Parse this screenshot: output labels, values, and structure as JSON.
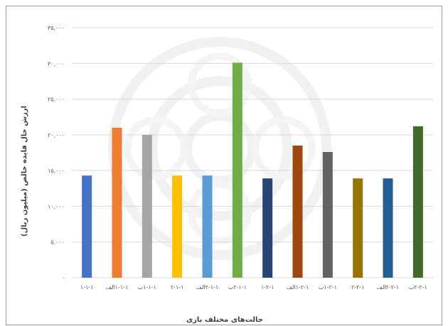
{
  "chart_data": {
    "type": "bar",
    "categories": [
      "۱-۱-۱",
      "۱-۱-۱الف",
      "۱-۱-۱ب",
      "۲-۱-۱",
      "۲-۱-۱الف",
      "۲-۱-۱ب",
      "۱-۲-۱",
      "۱-۲-۱الف",
      "۱-۲-۱ب",
      "۲-۲-۱",
      "۲-۲-۱الف",
      "۲-۲-۱ب"
    ],
    "values": [
      14300,
      21000,
      20000,
      14300,
      14300,
      30100,
      13900,
      18500,
      17600,
      13900,
      13900,
      21200
    ],
    "colors": [
      "#4472C4",
      "#ED7D31",
      "#A5A5A5",
      "#FFC000",
      "#5B9BD5",
      "#70AD47",
      "#264478",
      "#9E480E",
      "#636363",
      "#997300",
      "#255E91",
      "#43682B"
    ],
    "ylim": [
      0,
      35000
    ],
    "yticks": [
      0,
      5000,
      10000,
      15000,
      20000,
      25000,
      30000,
      35000
    ],
    "ytick_labels": [
      "-",
      "۵,۰۰۰",
      "۱۰,۰۰۰",
      "۱۵,۰۰۰",
      "۲۰,۰۰۰",
      "۲۵,۰۰۰",
      "۳۰,۰۰۰",
      "۳۵,۰۰۰"
    ],
    "xlabel": "حالت‌های مختلف بازی",
    "ylabel": "ارزش حال فایده خالص (میلیون ریال)",
    "grid": true,
    "title": ""
  }
}
